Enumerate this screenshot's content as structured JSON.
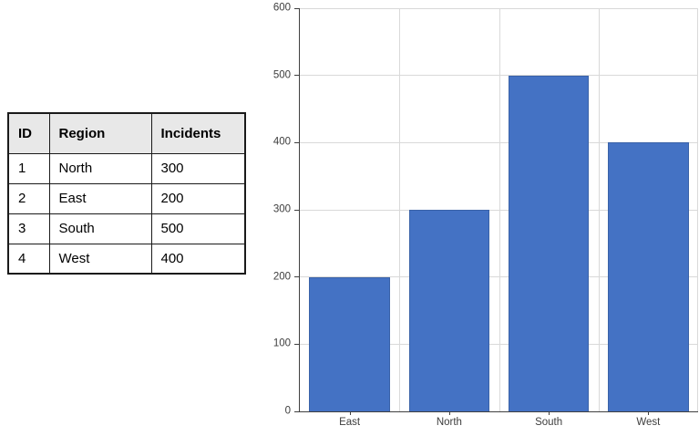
{
  "table": {
    "headers": [
      "ID",
      "Region",
      "Incidents"
    ],
    "rows": [
      [
        "1",
        "North",
        "300"
      ],
      [
        "2",
        "East",
        "200"
      ],
      [
        "3",
        "South",
        "500"
      ],
      [
        "4",
        "West",
        "400"
      ]
    ],
    "header_bg": "#e8e8e8",
    "border_color": "#1a1a1a"
  },
  "chart_data": {
    "type": "bar",
    "categories": [
      "East",
      "North",
      "South",
      "West"
    ],
    "values": [
      200,
      300,
      500,
      400
    ],
    "ylim": [
      0,
      600
    ],
    "yticks": [
      0,
      100,
      200,
      300,
      400,
      500,
      600
    ],
    "grid": true,
    "legend": "none",
    "bar_color": "#4472C4",
    "bar_border_color": "#3A62A8",
    "gridline_color": "#D9D9D9",
    "axis_color": "#404040",
    "label_color": "#3d3d3d"
  }
}
